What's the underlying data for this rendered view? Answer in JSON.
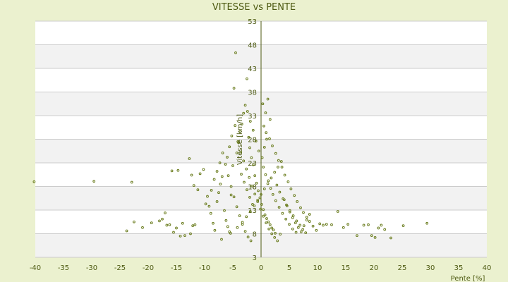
{
  "chart_data": {
    "type": "scatter",
    "title": "VITESSE vs PENTE",
    "xlabel": "Pente [%]",
    "ylabel": "Vitesse [km/h]",
    "xlim": [
      -40,
      40
    ],
    "ylim": [
      3,
      53
    ],
    "x_ticks": [
      -40,
      -35,
      -30,
      -25,
      -20,
      -15,
      -10,
      -5,
      0,
      5,
      10,
      15,
      20,
      25,
      30,
      35,
      40
    ],
    "y_ticks": [
      3,
      8,
      13,
      18,
      23,
      28,
      33,
      38,
      43,
      48,
      53
    ],
    "grid": "horizontal banded",
    "legend": "none",
    "colors": {
      "background": "#ebf1cf",
      "plot_band_light": "#ffffff",
      "plot_band_dark": "#f2f2f2",
      "grid_line": "#cccccc",
      "axis_line": "#4d5a12",
      "point": "#6b7d1f"
    },
    "series": [
      {
        "points": [
          [
            -40.2,
            19.0
          ],
          [
            -29.6,
            19.1
          ],
          [
            -22.9,
            18.9
          ],
          [
            -23.8,
            8.6
          ],
          [
            -22.5,
            10.5
          ],
          [
            -21.0,
            9.3
          ],
          [
            -19.4,
            10.3
          ],
          [
            -18.0,
            10.7
          ],
          [
            -17.5,
            11.1
          ],
          [
            -17.0,
            12.4
          ],
          [
            -16.7,
            9.8
          ],
          [
            -16.2,
            9.9
          ],
          [
            -15.5,
            8.3
          ],
          [
            -15.0,
            9.2
          ],
          [
            -14.3,
            7.5
          ],
          [
            -13.9,
            10.2
          ],
          [
            -13.5,
            7.6
          ],
          [
            -12.5,
            8.0
          ],
          [
            -12.1,
            9.7
          ],
          [
            -11.7,
            9.9
          ],
          [
            -15.8,
            21.3
          ],
          [
            -14.7,
            21.4
          ],
          [
            -12.7,
            23.9
          ],
          [
            -12.3,
            20.4
          ],
          [
            -11.9,
            18.2
          ],
          [
            -11.2,
            17.3
          ],
          [
            -10.8,
            20.7
          ],
          [
            -10.2,
            21.6
          ],
          [
            -9.8,
            14.3
          ],
          [
            -9.5,
            15.9
          ],
          [
            -9.2,
            13.8
          ],
          [
            -8.9,
            12.3
          ],
          [
            -8.5,
            10.2
          ],
          [
            -8.2,
            8.7
          ],
          [
            -7.8,
            14.8
          ],
          [
            -7.5,
            16.7
          ],
          [
            -7.2,
            18.5
          ],
          [
            -6.9,
            20.1
          ],
          [
            -6.5,
            12.9
          ],
          [
            -6.2,
            10.8
          ],
          [
            -5.9,
            9.5
          ],
          [
            -5.6,
            8.4
          ],
          [
            -5.3,
            16.2
          ],
          [
            -5.0,
            22.4
          ],
          [
            -4.8,
            38.8
          ],
          [
            -4.5,
            46.3
          ],
          [
            -4.3,
            25.1
          ],
          [
            -4.0,
            27.3
          ],
          [
            -3.7,
            29.6
          ],
          [
            -3.4,
            31.2
          ],
          [
            -3.1,
            33.5
          ],
          [
            -2.8,
            35.2
          ],
          [
            -2.5,
            40.8
          ],
          [
            -2.2,
            28.4
          ],
          [
            -2.0,
            26.2
          ],
          [
            -1.7,
            24.1
          ],
          [
            -1.4,
            22.6
          ],
          [
            -1.1,
            20.3
          ],
          [
            -0.8,
            18.7
          ],
          [
            -0.5,
            17.1
          ],
          [
            -0.2,
            15.6
          ],
          [
            0.1,
            14.2
          ],
          [
            0.4,
            13.1
          ],
          [
            0.7,
            12.0
          ],
          [
            1.0,
            11.2
          ],
          [
            1.3,
            10.5
          ],
          [
            1.6,
            9.9
          ],
          [
            1.9,
            9.2
          ],
          [
            2.2,
            8.8
          ],
          [
            2.5,
            8.1
          ],
          [
            0.3,
            35.5
          ],
          [
            0.8,
            33.6
          ],
          [
            1.2,
            36.5
          ],
          [
            1.6,
            32.2
          ],
          [
            0.5,
            30.8
          ],
          [
            0.9,
            29.4
          ],
          [
            1.5,
            28.1
          ],
          [
            2.0,
            26.6
          ],
          [
            2.6,
            25.0
          ],
          [
            3.1,
            23.5
          ],
          [
            3.7,
            22.1
          ],
          [
            4.2,
            20.4
          ],
          [
            4.8,
            19.0
          ],
          [
            5.3,
            17.5
          ],
          [
            5.9,
            16.1
          ],
          [
            6.4,
            14.8
          ],
          [
            7.0,
            13.5
          ],
          [
            7.5,
            12.5
          ],
          [
            8.1,
            11.5
          ],
          [
            8.6,
            10.6
          ],
          [
            9.2,
            9.6
          ],
          [
            9.8,
            8.7
          ],
          [
            10.4,
            10.1
          ],
          [
            11.0,
            9.8
          ],
          [
            11.6,
            10.0
          ],
          [
            12.5,
            9.9
          ],
          [
            13.6,
            12.7
          ],
          [
            14.6,
            9.3
          ],
          [
            15.4,
            10.0
          ],
          [
            17.0,
            7.6
          ],
          [
            18.2,
            9.8
          ],
          [
            19.0,
            9.9
          ],
          [
            19.6,
            7.6
          ],
          [
            20.2,
            7.2
          ],
          [
            20.8,
            9.2
          ],
          [
            21.3,
            9.8
          ],
          [
            21.9,
            8.9
          ],
          [
            23.0,
            7.1
          ],
          [
            25.2,
            9.7
          ],
          [
            29.4,
            10.2
          ],
          [
            -7.0,
            6.8
          ],
          [
            -5.4,
            8.1
          ],
          [
            -4.2,
            9.3
          ],
          [
            -3.3,
            10.4
          ],
          [
            -2.6,
            11.6
          ],
          [
            -1.9,
            12.7
          ],
          [
            -1.2,
            13.9
          ],
          [
            -0.6,
            15.1
          ],
          [
            0.0,
            16.3
          ],
          [
            0.6,
            17.5
          ],
          [
            1.2,
            18.6
          ],
          [
            1.8,
            19.8
          ],
          [
            2.4,
            21.0
          ],
          [
            3.0,
            22.1
          ],
          [
            3.6,
            23.3
          ],
          [
            4.1,
            15.2
          ],
          [
            4.6,
            13.9
          ],
          [
            5.1,
            12.6
          ],
          [
            5.6,
            11.4
          ],
          [
            6.1,
            10.3
          ],
          [
            6.6,
            9.3
          ],
          [
            7.1,
            8.4
          ],
          [
            7.6,
            9.7
          ],
          [
            8.1,
            10.9
          ],
          [
            8.6,
            12.1
          ],
          [
            -6.0,
            24.2
          ],
          [
            -5.6,
            26.4
          ],
          [
            -5.2,
            28.7
          ],
          [
            -4.6,
            30.9
          ],
          [
            -4.1,
            27.5
          ],
          [
            -3.6,
            25.3
          ],
          [
            -3.1,
            23.4
          ],
          [
            -2.6,
            21.7
          ],
          [
            -2.1,
            19.9
          ],
          [
            -1.6,
            18.1
          ],
          [
            -1.1,
            16.4
          ],
          [
            -0.6,
            14.8
          ],
          [
            -0.1,
            13.2
          ],
          [
            0.4,
            11.7
          ],
          [
            0.9,
            10.3
          ],
          [
            1.4,
            9.0
          ],
          [
            1.9,
            8.0
          ],
          [
            2.4,
            7.2
          ],
          [
            2.9,
            6.5
          ],
          [
            3.4,
            7.9
          ],
          [
            -8.8,
            17.2
          ],
          [
            -8.3,
            19.5
          ],
          [
            -7.8,
            21.2
          ],
          [
            -7.3,
            23.0
          ],
          [
            -6.8,
            25.1
          ],
          [
            -6.3,
            22.7
          ],
          [
            -5.8,
            20.3
          ],
          [
            -5.3,
            18.0
          ],
          [
            -4.8,
            15.8
          ],
          [
            -4.3,
            13.7
          ],
          [
            -3.8,
            11.8
          ],
          [
            -3.3,
            10.0
          ],
          [
            -2.8,
            8.5
          ],
          [
            -2.3,
            7.3
          ],
          [
            -1.8,
            6.5
          ],
          [
            0.2,
            24.1
          ],
          [
            0.6,
            26.3
          ],
          [
            1.0,
            28.0
          ],
          [
            0.4,
            22.1
          ],
          [
            0.8,
            20.5
          ],
          [
            1.3,
            19.2
          ],
          [
            1.7,
            17.6
          ],
          [
            2.1,
            16.3
          ],
          [
            2.6,
            15.0
          ],
          [
            3.2,
            13.6
          ],
          [
            3.8,
            12.3
          ],
          [
            4.4,
            11.1
          ],
          [
            5.0,
            10.0
          ],
          [
            5.6,
            9.0
          ],
          [
            6.2,
            8.3
          ],
          [
            -2.4,
            33.9
          ],
          [
            -1.9,
            31.8
          ],
          [
            -1.4,
            29.9
          ],
          [
            -0.9,
            27.6
          ],
          [
            -0.4,
            25.5
          ],
          [
            -3.5,
            20.6
          ],
          [
            -3.0,
            18.9
          ],
          [
            -2.5,
            17.3
          ],
          [
            -2.0,
            15.7
          ],
          [
            -1.5,
            14.2
          ],
          [
            2.8,
            18.3
          ],
          [
            3.3,
            16.8
          ],
          [
            3.9,
            15.4
          ],
          [
            4.5,
            14.1
          ],
          [
            5.1,
            12.9
          ],
          [
            5.7,
            11.8
          ],
          [
            6.3,
            10.7
          ],
          [
            6.9,
            9.8
          ],
          [
            7.4,
            8.9
          ],
          [
            7.9,
            8.2
          ]
        ]
      }
    ]
  }
}
